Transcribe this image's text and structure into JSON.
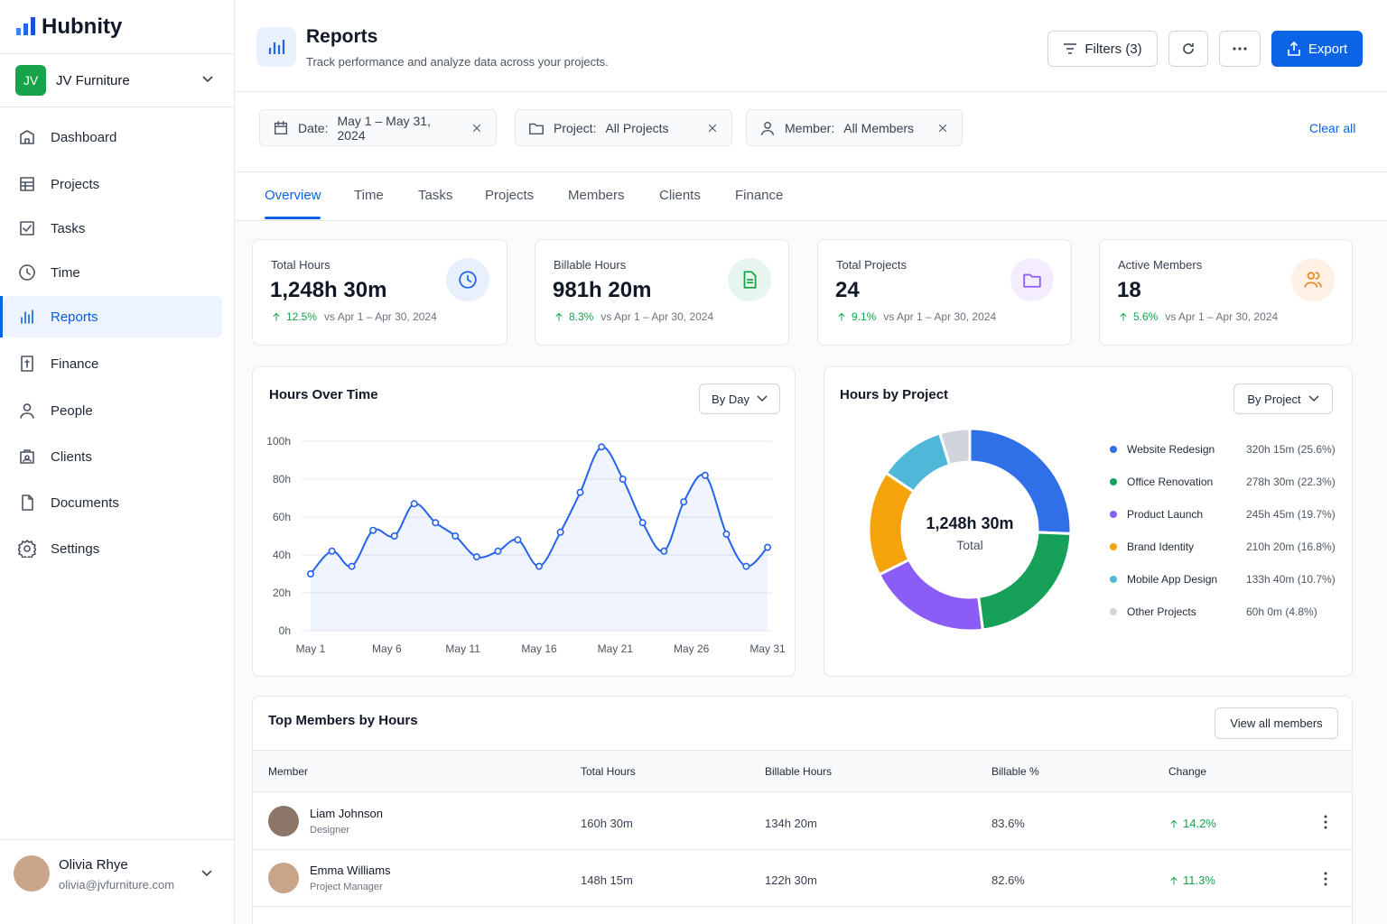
{
  "sidebar": {
    "brand": "Hubnity",
    "workspace": {
      "initials": "JV",
      "name": "JV Furniture"
    },
    "nav": [
      "Dashboard",
      "Projects",
      "Tasks",
      "Time",
      "Reports",
      "Finance",
      "People",
      "Clients",
      "Documents",
      "Settings"
    ],
    "user": {
      "name": "Olivia Rhye",
      "email": "olivia@jvfurniture.com"
    }
  },
  "header": {
    "title": "Reports",
    "subtitle": "Track performance and analyze data across your projects.",
    "filters_button": "Filters (3)",
    "export_button": "Export"
  },
  "filters": {
    "chips": [
      {
        "label": "Date:",
        "value": "May 1 – May 31, 2024"
      },
      {
        "label": "Project:",
        "value": "All Projects"
      },
      {
        "label": "Member:",
        "value": "All Members"
      }
    ],
    "clear": "Clear all"
  },
  "tabs": [
    "Overview",
    "Time",
    "Tasks",
    "Projects",
    "Members",
    "Clients",
    "Finance"
  ],
  "kpis": [
    {
      "label": "Total Hours",
      "value": "1,248h 30m",
      "change": "12.5%",
      "compare": "vs Apr 1 – Apr 30, 2024"
    },
    {
      "label": "Billable Hours",
      "value": "981h 20m",
      "change": "8.3%",
      "compare": "vs Apr 1 – Apr 30, 2024"
    },
    {
      "label": "Total Projects",
      "value": "24",
      "change": "9.1%",
      "compare": "vs Apr 1 – Apr 30, 2024"
    },
    {
      "label": "Active Members",
      "value": "18",
      "change": "5.6%",
      "compare": "vs Apr 1 – Apr 30, 2024"
    }
  ],
  "chart_data": [
    {
      "type": "line",
      "title": "Hours Over Time",
      "control": "By Day",
      "color": "#2563eb",
      "x": [
        1,
        2.4,
        3.7,
        5.1,
        6.5,
        7.8,
        9.2,
        10.5,
        11.9,
        13.3,
        14.6,
        16,
        17.4,
        18.7,
        20.1,
        21.5,
        22.8,
        24.2,
        25.5,
        26.9,
        28.3,
        29.6,
        31
      ],
      "values": [
        30,
        42,
        34,
        53,
        50,
        67,
        57,
        50,
        39,
        42,
        48,
        34,
        52,
        73,
        97,
        80,
        57,
        42,
        68,
        82,
        51,
        34,
        44
      ],
      "xlim": [
        1,
        31
      ],
      "xticks": [
        {
          "value": 1,
          "label": "May 1"
        },
        {
          "value": 6,
          "label": "May 6"
        },
        {
          "value": 11,
          "label": "May 11"
        },
        {
          "value": 16,
          "label": "May 16"
        },
        {
          "value": 21,
          "label": "May 21"
        },
        {
          "value": 26,
          "label": "May 26"
        },
        {
          "value": 31,
          "label": "May 31"
        }
      ],
      "ylim": [
        0,
        100
      ],
      "yticks": [
        {
          "value": 0,
          "label": "0h"
        },
        {
          "value": 20,
          "label": "20h"
        },
        {
          "value": 40,
          "label": "40h"
        },
        {
          "value": 60,
          "label": "60h"
        },
        {
          "value": 80,
          "label": "80h"
        },
        {
          "value": 100,
          "label": "100h"
        }
      ],
      "grid": true
    },
    {
      "type": "pie",
      "title": "Hours by Project",
      "control": "By Project",
      "center_value": "1,248h 30m",
      "center_label": "Total",
      "categories": [
        "Website Redesign",
        "Office Renovation",
        "Product Launch",
        "Brand Identity",
        "Mobile App Design",
        "Other Projects"
      ],
      "values": [
        25.6,
        22.3,
        19.7,
        16.8,
        10.7,
        4.8
      ],
      "value_labels": [
        "320h 15m (25.6%)",
        "278h 30m (22.3%)",
        "245h 45m (19.7%)",
        "210h 20m (16.8%)",
        "133h 40m (10.7%)",
        "60h 0m (4.8%)"
      ],
      "colors": [
        "#2f6fe8",
        "#16a05a",
        "#8b5cf6",
        "#f5a30b",
        "#4fb8d8",
        "#d1d5db"
      ]
    }
  ],
  "table": {
    "title": "Top Members by Hours",
    "action": "View all members",
    "columns": [
      "Member",
      "Total Hours",
      "Billable Hours",
      "Billable %",
      "Change"
    ],
    "rows": [
      {
        "name": "Liam Johnson",
        "role": "Designer",
        "total": "160h 30m",
        "billable": "134h 20m",
        "percent": "83.6%",
        "change": "14.2%"
      },
      {
        "name": "Emma Williams",
        "role": "Project Manager",
        "total": "148h 15m",
        "billable": "122h 30m",
        "percent": "82.6%",
        "change": "11.3%"
      }
    ]
  }
}
